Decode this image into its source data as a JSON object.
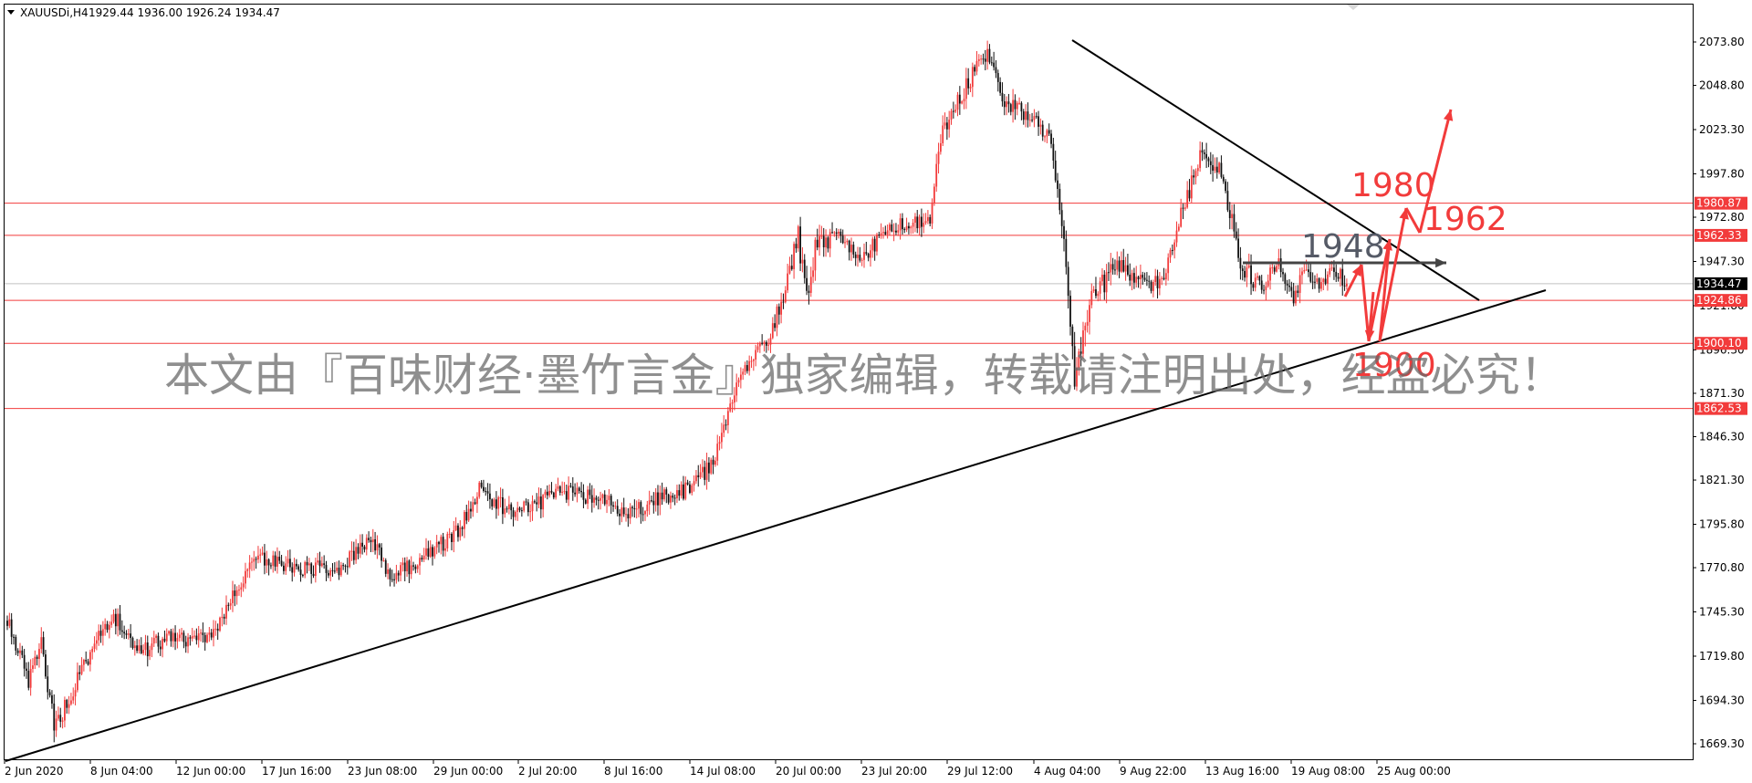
{
  "header": {
    "symbol": "XAUUSDi,H4",
    "ohlc": "1929.44 1936.00 1926.24 1934.47"
  },
  "watermark": "本文由『百味财经·墨竹言金』独家编辑，转载请注明出处，经盗必究！",
  "colors": {
    "bull": "#f23b3b",
    "bear": "#111111",
    "level": "#f23b3b",
    "trend": "#000000",
    "arrow": "#f23b3b",
    "grey_arrow": "#444444",
    "current_tag": "#000000"
  },
  "chart_data": {
    "type": "candlestick",
    "instrument": "XAUUSDi",
    "timeframe": "H4",
    "ylim": [
      1656,
      2088
    ],
    "y_ticks": [
      "2073.80",
      "2048.80",
      "2023.30",
      "1997.80",
      "1972.80",
      "1947.30",
      "1921.80",
      "1896.30",
      "1871.30",
      "1846.30",
      "1821.30",
      "1795.80",
      "1770.80",
      "1745.30",
      "1719.80",
      "1694.30",
      "1669.30"
    ],
    "x_ticks": [
      "2 Jun 2020",
      "8 Jun 04:00",
      "12 Jun 00:00",
      "17 Jun 16:00",
      "23 Jun 08:00",
      "29 Jun 00:00",
      "2 Jul 20:00",
      "8 Jul 16:00",
      "14 Jul 08:00",
      "20 Jul 00:00",
      "23 Jul 20:00",
      "29 Jul 12:00",
      "4 Aug 04:00",
      "9 Aug 22:00",
      "13 Aug 16:00",
      "19 Aug 08:00",
      "25 Aug 00:00"
    ],
    "current_price": "1934.47",
    "levels": [
      "1980.87",
      "1962.33",
      "1924.86",
      "1900.10",
      "1862.53"
    ],
    "level_values": [
      1980.87,
      1962.33,
      1924.86,
      1900.1,
      1862.53
    ],
    "annotations": [
      {
        "text": "1980",
        "color": "#f23b3b"
      },
      {
        "text": "1962",
        "color": "#f23b3b"
      },
      {
        "text": "1948",
        "color": "#555a66"
      },
      {
        "text": "1900",
        "color": "#f23b3b"
      }
    ],
    "anchors": [
      [
        0,
        1741,
        5
      ],
      [
        10,
        1706,
        6
      ],
      [
        16,
        1726,
        6
      ],
      [
        19,
        1703,
        8
      ],
      [
        22,
        1680,
        8
      ],
      [
        27,
        1690,
        6
      ],
      [
        45,
        1738,
        6
      ],
      [
        52,
        1741,
        6
      ],
      [
        62,
        1722,
        6
      ],
      [
        75,
        1730,
        6
      ],
      [
        96,
        1730,
        6
      ],
      [
        117,
        1778,
        6
      ],
      [
        135,
        1770,
        6
      ],
      [
        156,
        1771,
        6
      ],
      [
        172,
        1786,
        6
      ],
      [
        180,
        1765,
        6
      ],
      [
        198,
        1778,
        6
      ],
      [
        212,
        1792,
        6
      ],
      [
        222,
        1815,
        6
      ],
      [
        238,
        1802,
        6
      ],
      [
        262,
        1815,
        6
      ],
      [
        282,
        1809,
        6
      ],
      [
        291,
        1801,
        6
      ],
      [
        305,
        1810,
        6
      ],
      [
        318,
        1815,
        6
      ],
      [
        332,
        1830,
        6
      ],
      [
        344,
        1880,
        6
      ],
      [
        358,
        1902,
        6
      ],
      [
        366,
        1932,
        7
      ],
      [
        372,
        1962,
        8
      ],
      [
        376,
        1924,
        8
      ],
      [
        380,
        1955,
        7
      ],
      [
        392,
        1963,
        6
      ],
      [
        402,
        1947,
        6
      ],
      [
        412,
        1965,
        6
      ],
      [
        428,
        1970,
        6
      ],
      [
        434,
        1973,
        6
      ],
      [
        440,
        2025,
        7
      ],
      [
        450,
        2045,
        7
      ],
      [
        460,
        2068,
        7
      ],
      [
        468,
        2040,
        7
      ],
      [
        482,
        2030,
        6
      ],
      [
        490,
        2020,
        6
      ],
      [
        496,
        1970,
        10
      ],
      [
        502,
        1880,
        10
      ],
      [
        510,
        1925,
        8
      ],
      [
        522,
        1945,
        7
      ],
      [
        532,
        1935,
        6
      ],
      [
        544,
        1935,
        6
      ],
      [
        552,
        1975,
        7
      ],
      [
        562,
        2010,
        7
      ],
      [
        570,
        2000,
        6
      ],
      [
        574,
        1982,
        7
      ],
      [
        580,
        1945,
        7
      ],
      [
        590,
        1932,
        6
      ],
      [
        598,
        1950,
        6
      ],
      [
        604,
        1925,
        7
      ],
      [
        610,
        1940,
        6
      ],
      [
        618,
        1935,
        6
      ],
      [
        624,
        1945,
        6
      ],
      [
        630,
        1932,
        6
      ]
    ]
  }
}
